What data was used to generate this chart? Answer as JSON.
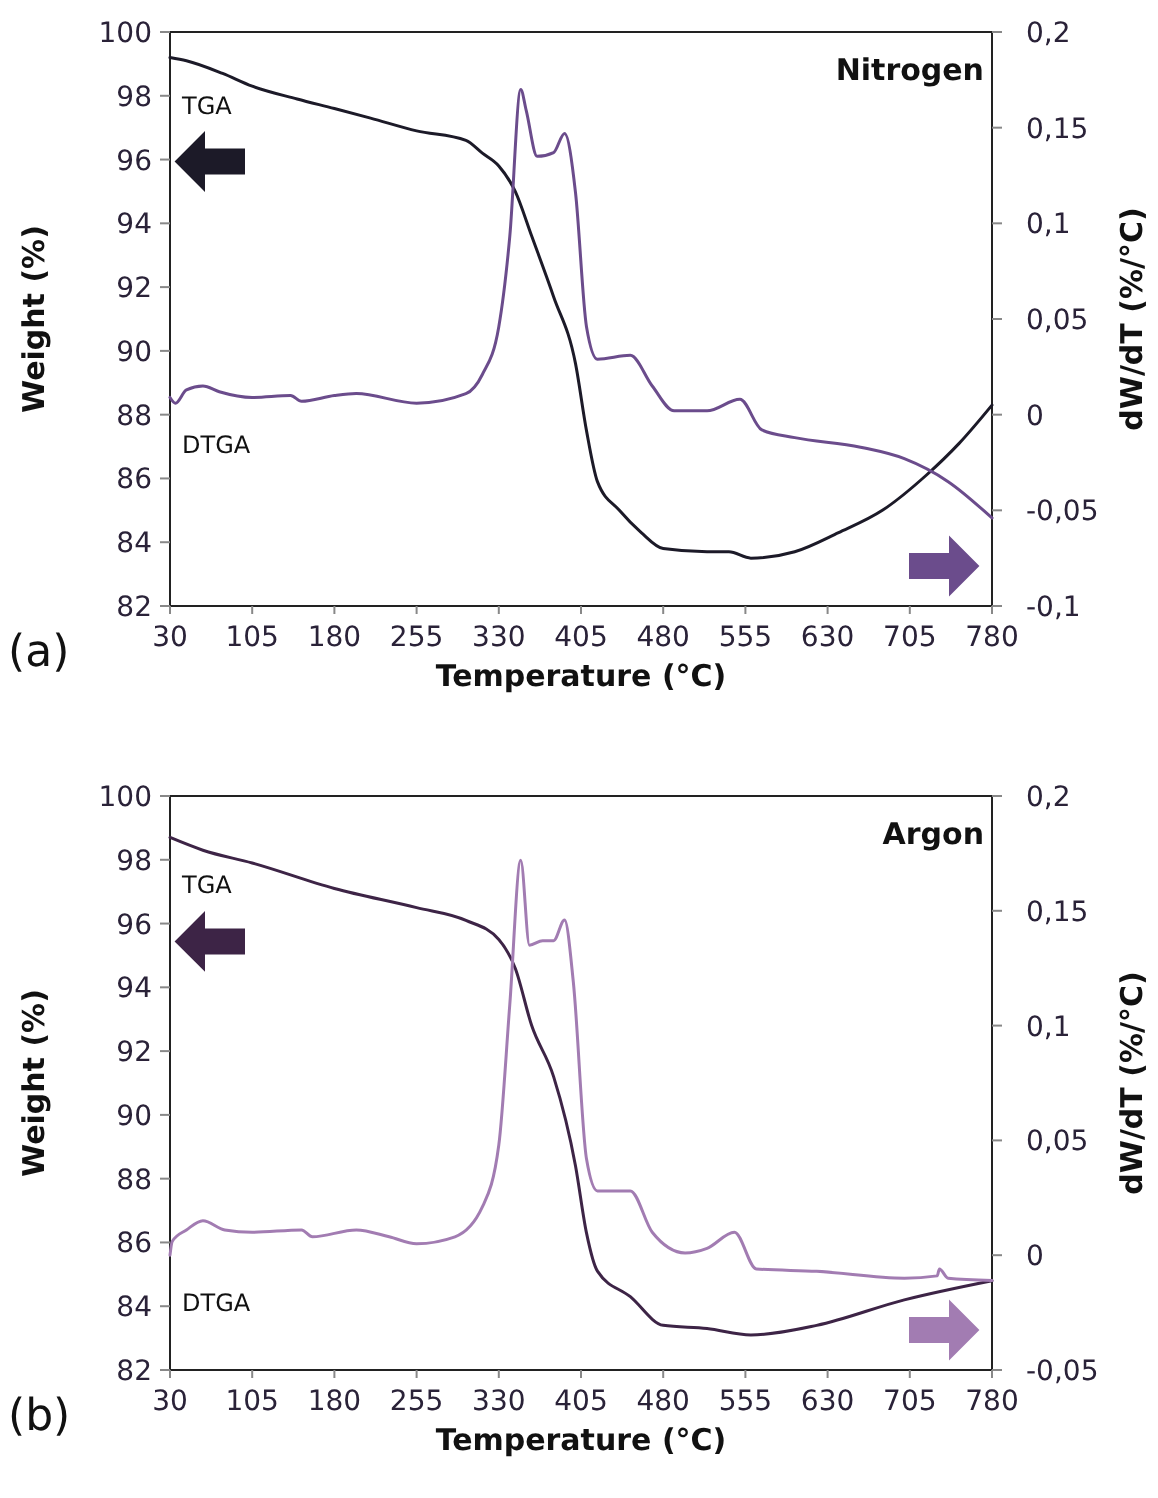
{
  "chart_data": [
    {
      "type": "line",
      "title": "Nitrogen",
      "xlabel": "Temperature (°C)",
      "ylabel": "Weight (%)",
      "y2label": "dW/dT (%/°C)",
      "annotations": [
        "(a)"
      ],
      "xlim": [
        30,
        780
      ],
      "xticks": [
        30,
        105,
        180,
        255,
        330,
        405,
        480,
        555,
        630,
        705,
        780
      ],
      "ylim": [
        82,
        100
      ],
      "yticks": [
        82,
        84,
        86,
        88,
        90,
        92,
        94,
        96,
        98,
        100
      ],
      "y2lim": [
        -0.1,
        0.2
      ],
      "y2ticks": [
        {
          "value": -0.1,
          "label": "-0,1"
        },
        {
          "value": -0.05,
          "label": "-0,05"
        },
        {
          "value": 0,
          "label": "0"
        },
        {
          "value": 0.05,
          "label": "0,05"
        },
        {
          "value": 0.1,
          "label": "0,1"
        },
        {
          "value": 0.15,
          "label": "0,15"
        },
        {
          "value": 0.2,
          "label": "0,2"
        }
      ],
      "series": [
        {
          "name": "TGA",
          "color": "#1c1a28",
          "x": [
            30,
            45,
            78,
            105,
            146,
            180,
            213,
            255,
            300,
            315,
            330,
            345,
            360,
            380,
            400,
            410,
            420,
            440,
            460,
            480,
            520,
            540,
            560,
            600,
            640,
            680,
            720,
            750,
            780
          ],
          "values": [
            99.2,
            99.1,
            98.7,
            98.3,
            97.9,
            97.6,
            97.3,
            96.9,
            96.6,
            96.2,
            95.8,
            95.0,
            93.6,
            91.7,
            89.6,
            87.5,
            85.9,
            85.0,
            84.3,
            83.8,
            83.7,
            83.7,
            83.5,
            83.7,
            84.3,
            85.0,
            86.1,
            87.1,
            88.3
          ]
        },
        {
          "name": "DTGA",
          "color": "#6b4c8c",
          "axis": "y2",
          "x": [
            30,
            35,
            45,
            60,
            75,
            105,
            140,
            150,
            180,
            200,
            255,
            300,
            315,
            330,
            340,
            350,
            355,
            365,
            380,
            390,
            400,
            410,
            420,
            450,
            470,
            490,
            520,
            550,
            570,
            600,
            660,
            700,
            740,
            780
          ],
          "values": [
            0.009,
            0.006,
            0.013,
            0.015,
            0.012,
            0.009,
            0.01,
            0.007,
            0.01,
            0.011,
            0.006,
            0.011,
            0.021,
            0.046,
            0.093,
            0.17,
            0.159,
            0.135,
            0.137,
            0.147,
            0.116,
            0.046,
            0.029,
            0.031,
            0.015,
            0.002,
            0.002,
            0.008,
            -0.008,
            -0.012,
            -0.017,
            -0.023,
            -0.035,
            -0.054
          ]
        }
      ]
    },
    {
      "type": "line",
      "title": "Argon",
      "xlabel": "Temperature (°C)",
      "ylabel": "Weight (%)",
      "y2label": "dW/dT (%/°C)",
      "annotations": [
        "(b)"
      ],
      "xlim": [
        30,
        780
      ],
      "xticks": [
        30,
        105,
        180,
        255,
        330,
        405,
        480,
        555,
        630,
        705,
        780
      ],
      "ylim": [
        82,
        100
      ],
      "yticks": [
        82,
        84,
        86,
        88,
        90,
        92,
        94,
        96,
        98,
        100
      ],
      "y2lim": [
        -0.05,
        0.2
      ],
      "y2ticks": [
        {
          "value": -0.05,
          "label": "-0,05"
        },
        {
          "value": 0,
          "label": "0"
        },
        {
          "value": 0.05,
          "label": "0,05"
        },
        {
          "value": 0.1,
          "label": "0,1"
        },
        {
          "value": 0.15,
          "label": "0,15"
        },
        {
          "value": 0.2,
          "label": "0,2"
        }
      ],
      "series": [
        {
          "name": "TGA",
          "color": "#3d2446",
          "x": [
            30,
            60,
            105,
            180,
            255,
            300,
            330,
            345,
            360,
            380,
            400,
            410,
            420,
            450,
            480,
            520,
            560,
            620,
            700,
            780
          ],
          "values": [
            98.7,
            98.3,
            97.9,
            97.1,
            96.5,
            96.1,
            95.5,
            94.6,
            92.8,
            91.2,
            88.4,
            86.3,
            85.1,
            84.3,
            83.4,
            83.3,
            83.1,
            83.4,
            84.2,
            84.8
          ]
        },
        {
          "name": "DTGA",
          "color": "#a27cb2",
          "axis": "y2",
          "x": [
            30,
            32,
            45,
            60,
            80,
            105,
            150,
            160,
            200,
            230,
            255,
            290,
            315,
            330,
            340,
            350,
            358,
            370,
            380,
            390,
            398,
            410,
            420,
            450,
            470,
            500,
            520,
            545,
            565,
            620,
            700,
            730,
            732,
            740,
            780
          ],
          "values": [
            0.0,
            0.006,
            0.011,
            0.015,
            0.011,
            0.01,
            0.011,
            0.008,
            0.011,
            0.008,
            0.005,
            0.008,
            0.021,
            0.048,
            0.109,
            0.172,
            0.135,
            0.137,
            0.137,
            0.146,
            0.119,
            0.042,
            0.028,
            0.028,
            0.01,
            0.001,
            0.003,
            0.01,
            -0.006,
            -0.007,
            -0.01,
            -0.009,
            -0.006,
            -0.01,
            -0.011
          ]
        }
      ]
    }
  ]
}
